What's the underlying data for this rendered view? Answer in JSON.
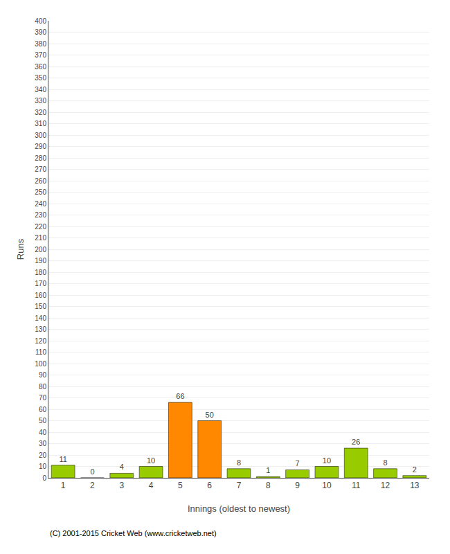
{
  "chart_data": {
    "type": "bar",
    "categories": [
      "1",
      "2",
      "3",
      "4",
      "5",
      "6",
      "7",
      "8",
      "9",
      "10",
      "11",
      "12",
      "13"
    ],
    "values": [
      11,
      0,
      4,
      10,
      66,
      50,
      8,
      1,
      7,
      10,
      26,
      8,
      2
    ],
    "colors": [
      "#99cc00",
      "#99cc00",
      "#99cc00",
      "#99cc00",
      "#ff8800",
      "#ff8800",
      "#99cc00",
      "#99cc00",
      "#99cc00",
      "#99cc00",
      "#99cc00",
      "#99cc00",
      "#99cc00"
    ],
    "xlabel": "Innings (oldest to newest)",
    "ylabel": "Runs",
    "ylim": [
      0,
      400
    ],
    "yticks": [
      0,
      10,
      20,
      30,
      40,
      50,
      60,
      70,
      80,
      90,
      100,
      110,
      120,
      130,
      140,
      150,
      160,
      170,
      180,
      190,
      200,
      210,
      220,
      230,
      240,
      250,
      260,
      270,
      280,
      290,
      300,
      310,
      320,
      330,
      340,
      350,
      360,
      370,
      380,
      390,
      400
    ],
    "grid": true,
    "data_labels": true,
    "annotations": [
      "(C) 2001-2015 Cricket Web (www.cricketweb.net)"
    ]
  }
}
